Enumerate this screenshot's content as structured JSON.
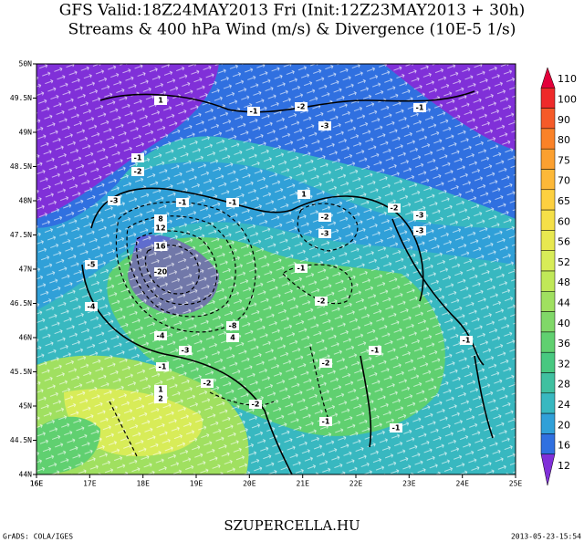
{
  "header": {
    "title": "GFS Valid:18Z24MAY2013 Fri (Init:12Z23MAY2013 + 30h)",
    "subtitle": "Streams & 400 hPa Wind (m/s) & Divergence (10E-5 1/s)"
  },
  "map": {
    "lon_labels": [
      "16E",
      "16E",
      "17E",
      "18E",
      "19E",
      "20E",
      "21E",
      "22E",
      "23E",
      "24E",
      "25E"
    ],
    "lat_labels": [
      "50N",
      "49.5N",
      "49N",
      "48.5N",
      "48N",
      "47.5N",
      "47N",
      "46.5N",
      "46N",
      "45.5N",
      "45N",
      "44.5N",
      "44N"
    ],
    "contour_labels": [
      "1",
      "-1",
      "-2",
      "-1",
      "-3",
      "-1",
      "-2",
      "-3",
      "-1",
      "-1",
      "1",
      "-2",
      "-3",
      "-2",
      "-3",
      "-3",
      "-1",
      "-2",
      "-1",
      "-1",
      "-2",
      "-1",
      "-1",
      "-2",
      "1",
      "2",
      "-1",
      "-4",
      "-4",
      "-3",
      "-2",
      "-8",
      "-20",
      "16",
      "-5",
      "12",
      "8",
      "4"
    ]
  },
  "colorbar": [
    {
      "label": "110",
      "color": "#e3003a"
    },
    {
      "label": "100",
      "color": "#ee2a2a"
    },
    {
      "label": "90",
      "color": "#f55a28"
    },
    {
      "label": "80",
      "color": "#fa8228"
    },
    {
      "label": "75",
      "color": "#fca030"
    },
    {
      "label": "70",
      "color": "#fdb838"
    },
    {
      "label": "65",
      "color": "#fdd040"
    },
    {
      "label": "60",
      "color": "#f5e048"
    },
    {
      "label": "56",
      "color": "#e8e850"
    },
    {
      "label": "52",
      "color": "#d8ec58"
    },
    {
      "label": "48",
      "color": "#c0e858"
    },
    {
      "label": "44",
      "color": "#a0e060"
    },
    {
      "label": "40",
      "color": "#80d868"
    },
    {
      "label": "36",
      "color": "#60d070"
    },
    {
      "label": "32",
      "color": "#48c880"
    },
    {
      "label": "28",
      "color": "#40c0a0"
    },
    {
      "label": "24",
      "color": "#38b8c0"
    },
    {
      "label": "20",
      "color": "#30a0d8"
    },
    {
      "label": "16",
      "color": "#3070e0"
    },
    {
      "label": "12",
      "color": "#8030d8"
    }
  ],
  "footer": {
    "site": "SZUPERCELLA.HU",
    "credit": "GrADS: COLA/IGES",
    "timestamp": "2013-05-23-15:54"
  }
}
